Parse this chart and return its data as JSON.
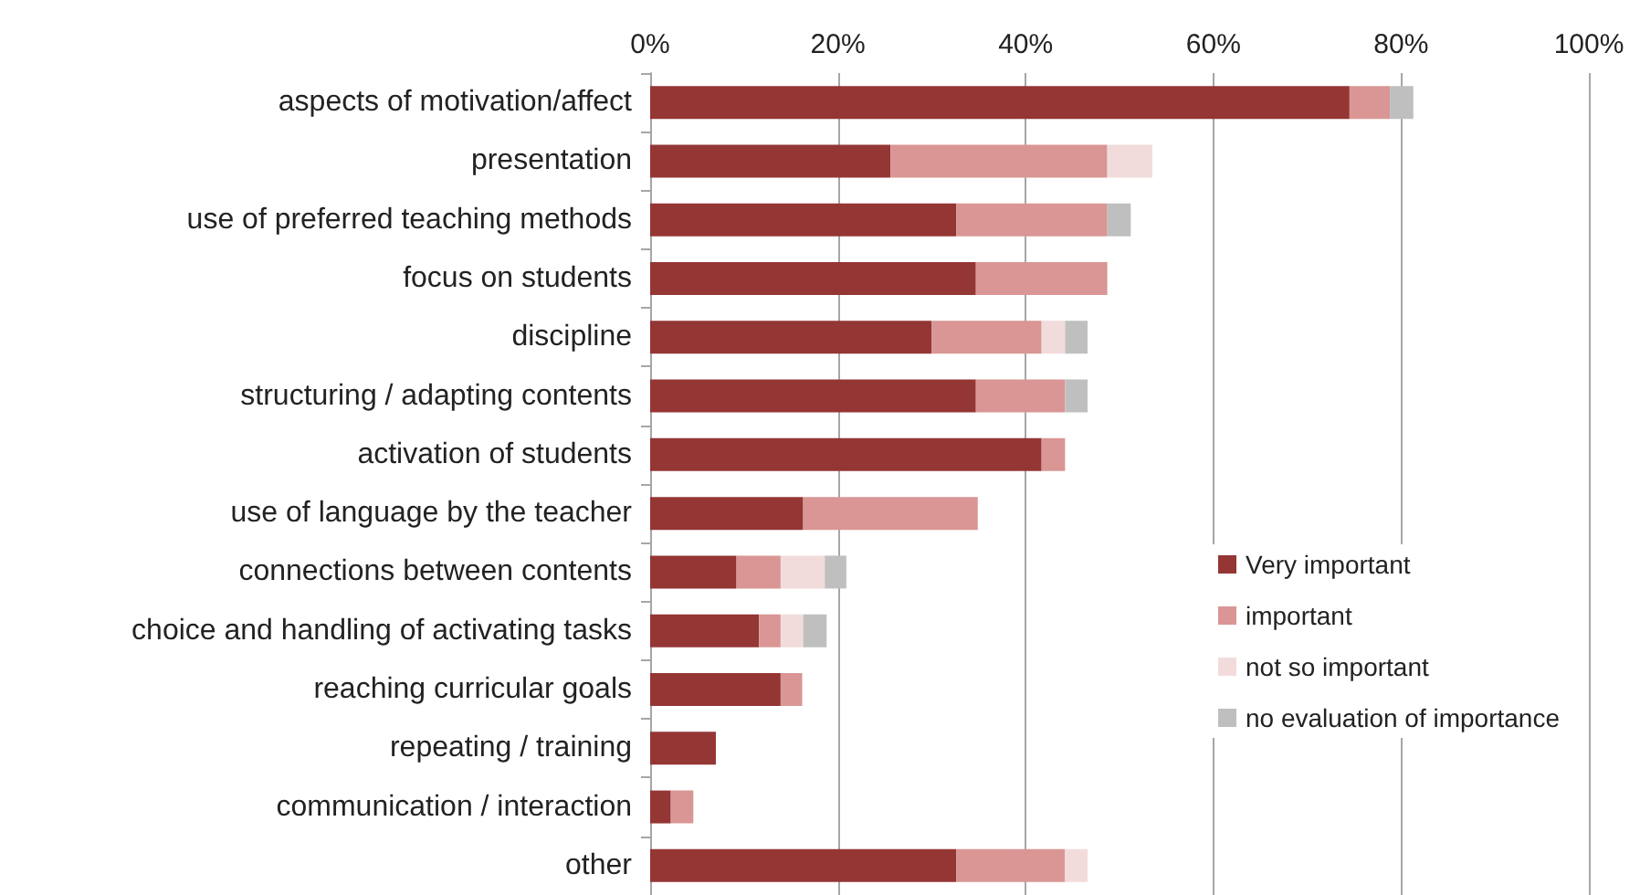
{
  "chart_data": {
    "type": "bar",
    "orientation": "horizontal",
    "stacked": true,
    "categories": [
      "aspects of motivation/affect",
      "presentation",
      "use of preferred teaching methods",
      "focus on students",
      "discipline",
      "structuring / adapting contents",
      "activation of students",
      "use of language by the teacher",
      "connections between contents",
      "choice and handling of activating tasks",
      "reaching curricular goals",
      "repeating / training",
      "communication / interaction",
      "other"
    ],
    "series": [
      {
        "name": "Very important",
        "color": "#943634",
        "values": [
          74.5,
          25.6,
          32.6,
          34.7,
          30.0,
          34.7,
          41.7,
          16.3,
          9.2,
          11.6,
          13.9,
          7.0,
          2.2,
          32.6
        ]
      },
      {
        "name": "important",
        "color": "#d99694",
        "values": [
          4.3,
          23.1,
          16.1,
          14.0,
          11.7,
          9.5,
          2.5,
          18.6,
          4.7,
          2.3,
          2.3,
          0,
          2.4,
          11.6
        ]
      },
      {
        "name": "not so important",
        "color": "#f2dcdb",
        "values": [
          0,
          4.8,
          0,
          0,
          2.5,
          0,
          0,
          0,
          4.7,
          2.4,
          0,
          0,
          0,
          2.4
        ]
      },
      {
        "name": "no evaluation of importance",
        "color": "#bfbfbf",
        "values": [
          2.5,
          0,
          2.5,
          0,
          2.4,
          2.4,
          0,
          0,
          2.3,
          2.5,
          0,
          0,
          0,
          0
        ]
      }
    ],
    "xlim": [
      0,
      100
    ],
    "xticks": [
      {
        "value": 0,
        "label": "0%"
      },
      {
        "value": 20,
        "label": "20%"
      },
      {
        "value": 40,
        "label": "40%"
      },
      {
        "value": 60,
        "label": "60%"
      },
      {
        "value": 80,
        "label": "80%"
      },
      {
        "value": 100,
        "label": "100%"
      }
    ],
    "grid": "x",
    "legend": "right"
  }
}
